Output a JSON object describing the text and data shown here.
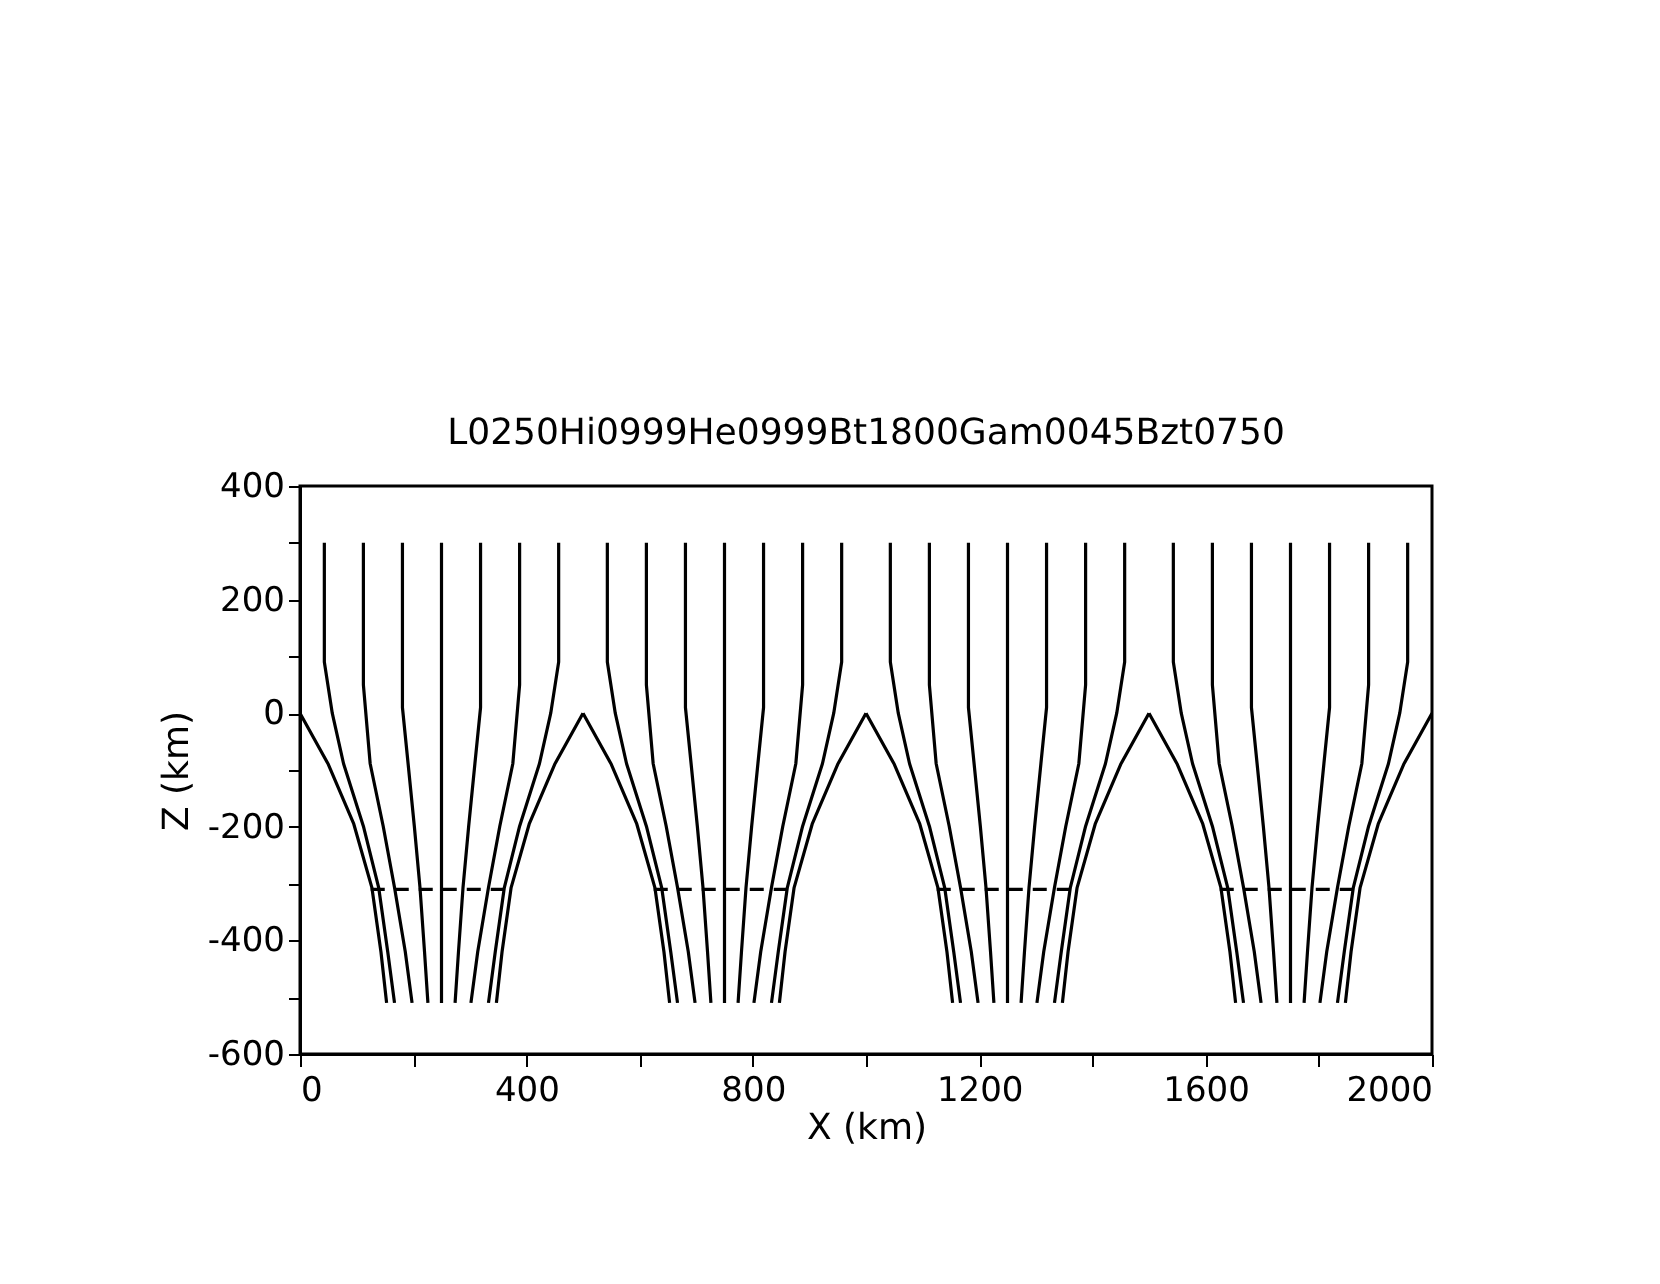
{
  "chart_data": {
    "type": "line",
    "title": "L0250Hi0999He0999Bt1800Gam0045Bzt0750",
    "xlabel": "X (km)",
    "ylabel": "Z (km)",
    "xlim": [
      0,
      2000
    ],
    "ylim": [
      -600,
      400
    ],
    "xticks": [
      0,
      {
        "value": 200,
        "label": null
      },
      400,
      {
        "value": 600,
        "label": null
      },
      800,
      {
        "value": 1000,
        "label": null
      },
      1200,
      {
        "value": 1400,
        "label": null
      },
      1600,
      {
        "value": 1800,
        "label": null
      },
      2000
    ],
    "yticks": [
      -600,
      {
        "value": -500,
        "label": null
      },
      -400,
      {
        "value": -300,
        "label": null
      },
      -200,
      {
        "value": -100,
        "label": null
      },
      0,
      {
        "value": 100,
        "label": null
      },
      200,
      {
        "value": 300,
        "label": null
      },
      400
    ],
    "series": [
      {
        "color": "#000000",
        "x": [
          43,
          43,
          57,
          77,
          112,
          139,
          155,
          167
        ],
        "values": [
          300,
          90,
          0,
          -89,
          -199,
          -307,
          -420,
          -510
        ]
      },
      {
        "color": "#000000",
        "x": [
          112,
          112,
          124,
          147,
          167,
          186,
          198
        ],
        "values": [
          300,
          50,
          -89,
          -199,
          -307,
          -420,
          -510
        ]
      },
      {
        "color": "#000000",
        "x": [
          181,
          181,
          191,
          202,
          212,
          220,
          226
        ],
        "values": [
          300,
          10,
          -89,
          -199,
          -307,
          -420,
          -510
        ]
      },
      {
        "color": "#000000",
        "x": [
          250,
          250
        ],
        "values": [
          300,
          -510
        ]
      },
      {
        "color": "#000000",
        "x": [
          319,
          319,
          309,
          298,
          288,
          280,
          274
        ],
        "values": [
          300,
          10,
          -89,
          -199,
          -307,
          -420,
          -510
        ]
      },
      {
        "color": "#000000",
        "x": [
          388,
          388,
          376,
          353,
          333,
          314,
          302
        ],
        "values": [
          300,
          50,
          -89,
          -199,
          -307,
          -420,
          -510
        ]
      },
      {
        "color": "#000000",
        "x": [
          457,
          457,
          443,
          423,
          388,
          361,
          345,
          333
        ],
        "values": [
          300,
          90,
          0,
          -89,
          -199,
          -307,
          -420,
          -510
        ]
      },
      {
        "color": "#000000",
        "x": [
          0,
          50,
          95,
          127,
          143,
          153
        ],
        "values": [
          0,
          -90,
          -195,
          -307,
          -420,
          -510
        ]
      },
      {
        "color": "#000000",
        "x": [
          500,
          450,
          405,
          373,
          357,
          347
        ],
        "values": [
          0,
          -90,
          -195,
          -307,
          -420,
          -510
        ]
      },
      {
        "color": "#000000",
        "line_style": "dashed",
        "x": [
          125,
          375
        ],
        "values": [
          -310,
          -310
        ]
      },
      {
        "color": "#000000",
        "x": [
          543,
          543,
          557,
          577,
          612,
          639,
          655,
          667
        ],
        "values": [
          300,
          90,
          0,
          -89,
          -199,
          -307,
          -420,
          -510
        ]
      },
      {
        "color": "#000000",
        "x": [
          612,
          612,
          624,
          647,
          667,
          686,
          698
        ],
        "values": [
          300,
          50,
          -89,
          -199,
          -307,
          -420,
          -510
        ]
      },
      {
        "color": "#000000",
        "x": [
          681,
          681,
          691,
          702,
          712,
          720,
          726
        ],
        "values": [
          300,
          10,
          -89,
          -199,
          -307,
          -420,
          -510
        ]
      },
      {
        "color": "#000000",
        "x": [
          750,
          750
        ],
        "values": [
          300,
          -510
        ]
      },
      {
        "color": "#000000",
        "x": [
          819,
          819,
          809,
          798,
          788,
          780,
          774
        ],
        "values": [
          300,
          10,
          -89,
          -199,
          -307,
          -420,
          -510
        ]
      },
      {
        "color": "#000000",
        "x": [
          888,
          888,
          876,
          853,
          833,
          814,
          802
        ],
        "values": [
          300,
          50,
          -89,
          -199,
          -307,
          -420,
          -510
        ]
      },
      {
        "color": "#000000",
        "x": [
          957,
          957,
          943,
          923,
          888,
          861,
          845,
          833
        ],
        "values": [
          300,
          90,
          0,
          -89,
          -199,
          -307,
          -420,
          -510
        ]
      },
      {
        "color": "#000000",
        "x": [
          500,
          550,
          595,
          627,
          643,
          653
        ],
        "values": [
          0,
          -90,
          -195,
          -307,
          -420,
          -510
        ]
      },
      {
        "color": "#000000",
        "x": [
          1000,
          950,
          905,
          873,
          857,
          847
        ],
        "values": [
          0,
          -90,
          -195,
          -307,
          -420,
          -510
        ]
      },
      {
        "color": "#000000",
        "line_style": "dashed",
        "x": [
          625,
          875
        ],
        "values": [
          -310,
          -310
        ]
      },
      {
        "color": "#000000",
        "x": [
          1043,
          1043,
          1057,
          1077,
          1112,
          1139,
          1155,
          1167
        ],
        "values": [
          300,
          90,
          0,
          -89,
          -199,
          -307,
          -420,
          -510
        ]
      },
      {
        "color": "#000000",
        "x": [
          1112,
          1112,
          1124,
          1147,
          1167,
          1186,
          1198
        ],
        "values": [
          300,
          50,
          -89,
          -199,
          -307,
          -420,
          -510
        ]
      },
      {
        "color": "#000000",
        "x": [
          1181,
          1181,
          1191,
          1202,
          1212,
          1220,
          1226
        ],
        "values": [
          300,
          10,
          -89,
          -199,
          -307,
          -420,
          -510
        ]
      },
      {
        "color": "#000000",
        "x": [
          1250,
          1250
        ],
        "values": [
          300,
          -510
        ]
      },
      {
        "color": "#000000",
        "x": [
          1319,
          1319,
          1309,
          1298,
          1288,
          1280,
          1274
        ],
        "values": [
          300,
          10,
          -89,
          -199,
          -307,
          -420,
          -510
        ]
      },
      {
        "color": "#000000",
        "x": [
          1388,
          1388,
          1376,
          1353,
          1333,
          1314,
          1302
        ],
        "values": [
          300,
          50,
          -89,
          -199,
          -307,
          -420,
          -510
        ]
      },
      {
        "color": "#000000",
        "x": [
          1457,
          1457,
          1443,
          1423,
          1388,
          1361,
          1345,
          1333
        ],
        "values": [
          300,
          90,
          0,
          -89,
          -199,
          -307,
          -420,
          -510
        ]
      },
      {
        "color": "#000000",
        "x": [
          1000,
          1050,
          1095,
          1127,
          1143,
          1153
        ],
        "values": [
          0,
          -90,
          -195,
          -307,
          -420,
          -510
        ]
      },
      {
        "color": "#000000",
        "x": [
          1500,
          1450,
          1405,
          1373,
          1357,
          1347
        ],
        "values": [
          0,
          -90,
          -195,
          -307,
          -420,
          -510
        ]
      },
      {
        "color": "#000000",
        "line_style": "dashed",
        "x": [
          1125,
          1375
        ],
        "values": [
          -310,
          -310
        ]
      },
      {
        "color": "#000000",
        "x": [
          1543,
          1543,
          1557,
          1577,
          1612,
          1639,
          1655,
          1667
        ],
        "values": [
          300,
          90,
          0,
          -89,
          -199,
          -307,
          -420,
          -510
        ]
      },
      {
        "color": "#000000",
        "x": [
          1612,
          1612,
          1624,
          1647,
          1667,
          1686,
          1698
        ],
        "values": [
          300,
          50,
          -89,
          -199,
          -307,
          -420,
          -510
        ]
      },
      {
        "color": "#000000",
        "x": [
          1681,
          1681,
          1691,
          1702,
          1712,
          1720,
          1726
        ],
        "values": [
          300,
          10,
          -89,
          -199,
          -307,
          -420,
          -510
        ]
      },
      {
        "color": "#000000",
        "x": [
          1750,
          1750
        ],
        "values": [
          300,
          -510
        ]
      },
      {
        "color": "#000000",
        "x": [
          1819,
          1819,
          1809,
          1798,
          1788,
          1780,
          1774
        ],
        "values": [
          300,
          10,
          -89,
          -199,
          -307,
          -420,
          -510
        ]
      },
      {
        "color": "#000000",
        "x": [
          1888,
          1888,
          1876,
          1853,
          1833,
          1814,
          1802
        ],
        "values": [
          300,
          50,
          -89,
          -199,
          -307,
          -420,
          -510
        ]
      },
      {
        "color": "#000000",
        "x": [
          1957,
          1957,
          1943,
          1923,
          1888,
          1861,
          1845,
          1833
        ],
        "values": [
          300,
          90,
          0,
          -89,
          -199,
          -307,
          -420,
          -510
        ]
      },
      {
        "color": "#000000",
        "x": [
          1500,
          1550,
          1595,
          1627,
          1643,
          1653
        ],
        "values": [
          0,
          -90,
          -195,
          -307,
          -420,
          -510
        ]
      },
      {
        "color": "#000000",
        "x": [
          2000,
          1950,
          1905,
          1873,
          1857,
          1847
        ],
        "values": [
          0,
          -90,
          -195,
          -307,
          -420,
          -510
        ]
      },
      {
        "color": "#000000",
        "line_style": "dashed",
        "x": [
          1625,
          1875
        ],
        "values": [
          -310,
          -310
        ]
      }
    ]
  }
}
